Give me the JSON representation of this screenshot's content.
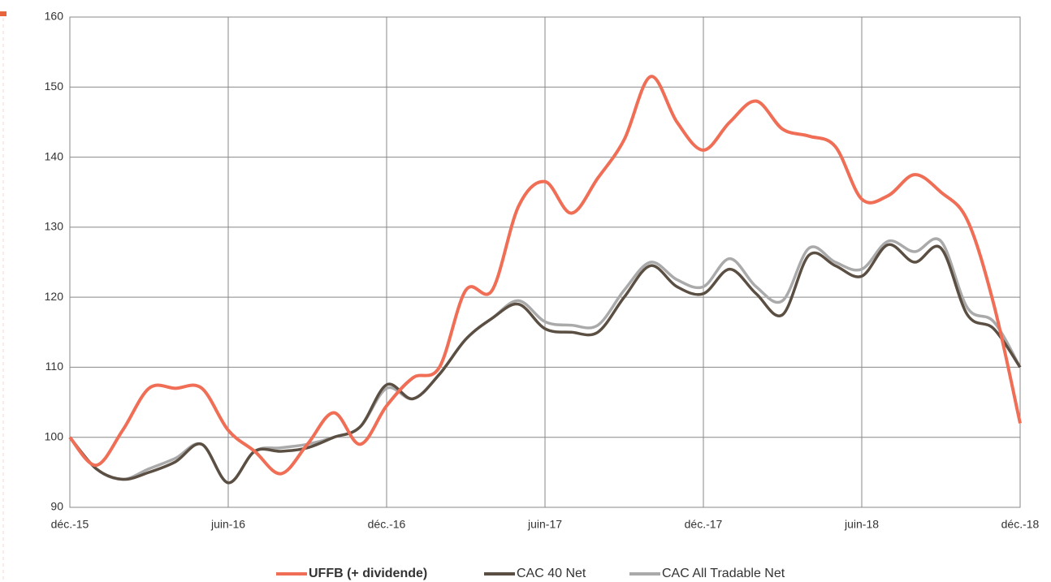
{
  "chart_data": {
    "type": "line",
    "categories": [
      "déc.-15",
      null,
      null,
      null,
      null,
      null,
      "juin-16",
      null,
      null,
      null,
      null,
      null,
      "déc.-16",
      null,
      null,
      null,
      null,
      null,
      "juin-17",
      null,
      null,
      null,
      null,
      null,
      "déc.-17",
      null,
      null,
      null,
      null,
      null,
      "juin-18",
      null,
      null,
      null,
      null,
      null,
      "déc.-18"
    ],
    "series": [
      {
        "name": "UFFB (+ dividende)",
        "color": "#f06e55",
        "values": [
          100,
          96,
          101,
          107,
          107,
          107,
          101,
          98,
          94.8,
          99,
          103.5,
          99,
          104.5,
          108.5,
          110,
          121,
          121,
          133,
          136.5,
          132,
          137,
          142.5,
          151.5,
          145,
          141,
          145,
          148,
          144,
          143,
          141.5,
          134,
          134.5,
          137.5,
          135,
          131,
          119,
          102
        ]
      },
      {
        "name": "CAC 40 Net",
        "color": "#5a4f42",
        "values": [
          100,
          95.5,
          94,
          95,
          96.5,
          99,
          93.5,
          98,
          98,
          98.5,
          100,
          101.5,
          107.5,
          105.5,
          109,
          114,
          117,
          119,
          115.5,
          115,
          115,
          120,
          124.5,
          121.5,
          120.5,
          124,
          120.5,
          117.5,
          126,
          124.5,
          123,
          127.5,
          125,
          127,
          117.5,
          115.5,
          110
        ]
      },
      {
        "name": "CAC All Tradable Net",
        "color": "#aaaaaa",
        "values": [
          100,
          95.5,
          94,
          95.5,
          97,
          99,
          93.5,
          98,
          98.5,
          99,
          100,
          101.5,
          107,
          105.5,
          109,
          114,
          117,
          119.5,
          116.5,
          116,
          116,
          121,
          125,
          122.5,
          121.5,
          125.5,
          121.5,
          119.5,
          127,
          125,
          124,
          128,
          126.5,
          128,
          118.5,
          116.5,
          110
        ]
      }
    ],
    "ylim": [
      90,
      160
    ],
    "yticks": [
      90,
      100,
      110,
      120,
      130,
      140,
      150,
      160
    ],
    "grid": true,
    "legend": "bottom"
  }
}
